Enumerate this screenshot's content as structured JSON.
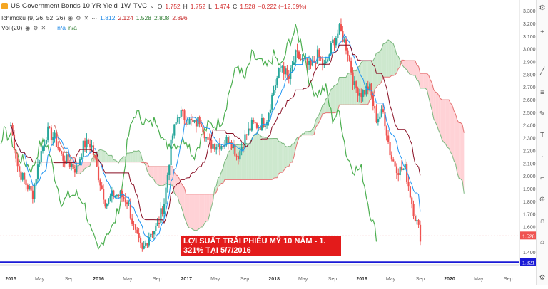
{
  "header": {
    "symbol": "US Government Bonds 10 YR Yield",
    "interval": "1W",
    "source": "TVC",
    "ohlc": {
      "o_label": "O",
      "o": "1.752",
      "h_label": "H",
      "h": "1.752",
      "l_label": "L",
      "l": "1.474",
      "c_label": "C",
      "c": "1.528",
      "change": "−0.222 (−12.69%)"
    },
    "ichimoku_label": "Ichimoku (9, 26, 52, 26)",
    "ichimoku_values": [
      "1.812",
      "2.124",
      "1.528",
      "2.808",
      "2.896"
    ],
    "vol_label": "Vol (20)",
    "vol_values": [
      "n/a",
      "n/a"
    ]
  },
  "annotation": {
    "line1": "LỢI SUẤT TRÁI PHIẾU MỸ 10 NĂM - 1.",
    "line2": "321% TẠI 5/7/2016"
  },
  "colors": {
    "up": "#26a69a",
    "down": "#ef5350",
    "tenkan": "#2196f3",
    "kijun": "#880e23",
    "chikou": "#4caf50",
    "cloud_bull": "#c8e6c9",
    "cloud_bear": "#ffcdd2",
    "hline": "#1a1ad6",
    "annotation_bg": "#e31b1b"
  },
  "chart_data": {
    "type": "candlestick",
    "x_tick_labels": [
      "2015",
      "May",
      "Sep",
      "2016",
      "May",
      "Sep",
      "2017",
      "May",
      "Sep",
      "2018",
      "May",
      "Sep",
      "2019",
      "May",
      "Sep",
      "2020",
      "May",
      "Sep"
    ],
    "y_tick_labels": [
      "3.300",
      "3.200",
      "3.100",
      "3.000",
      "2.900",
      "2.800",
      "2.700",
      "2.600",
      "2.500",
      "2.400",
      "2.300",
      "2.200",
      "2.100",
      "2.000",
      "1.900",
      "1.800",
      "1.700",
      "1.600",
      "1.400"
    ],
    "ylim": [
      1.3,
      3.34
    ],
    "last_price_label": "1.528",
    "hline_label": "1.321",
    "hline_value": 1.321,
    "last_price": 1.528,
    "close_series": [
      {
        "date": "2015-01",
        "close": 2.4
      },
      {
        "date": "2015-02",
        "close": 2.05
      },
      {
        "date": "2015-03",
        "close": 1.95
      },
      {
        "date": "2015-04",
        "close": 1.85
      },
      {
        "date": "2015-05",
        "close": 2.15
      },
      {
        "date": "2015-06",
        "close": 2.35
      },
      {
        "date": "2015-07",
        "close": 2.3
      },
      {
        "date": "2015-08",
        "close": 2.15
      },
      {
        "date": "2015-09",
        "close": 2.1
      },
      {
        "date": "2015-10",
        "close": 2.05
      },
      {
        "date": "2015-11",
        "close": 2.25
      },
      {
        "date": "2015-12",
        "close": 2.25
      },
      {
        "date": "2016-01",
        "close": 2.0
      },
      {
        "date": "2016-02",
        "close": 1.78
      },
      {
        "date": "2016-03",
        "close": 1.85
      },
      {
        "date": "2016-04",
        "close": 1.85
      },
      {
        "date": "2016-05",
        "close": 1.8
      },
      {
        "date": "2016-06",
        "close": 1.55
      },
      {
        "date": "2016-07",
        "close": 1.4
      },
      {
        "date": "2016-08",
        "close": 1.55
      },
      {
        "date": "2016-09",
        "close": 1.6
      },
      {
        "date": "2016-10",
        "close": 1.8
      },
      {
        "date": "2016-11",
        "close": 2.3
      },
      {
        "date": "2016-12",
        "close": 2.5
      },
      {
        "date": "2017-01",
        "close": 2.45
      },
      {
        "date": "2017-02",
        "close": 2.4
      },
      {
        "date": "2017-03",
        "close": 2.45
      },
      {
        "date": "2017-04",
        "close": 2.25
      },
      {
        "date": "2017-05",
        "close": 2.25
      },
      {
        "date": "2017-06",
        "close": 2.25
      },
      {
        "date": "2017-07",
        "close": 2.3
      },
      {
        "date": "2017-08",
        "close": 2.15
      },
      {
        "date": "2017-09",
        "close": 2.3
      },
      {
        "date": "2017-10",
        "close": 2.4
      },
      {
        "date": "2017-11",
        "close": 2.4
      },
      {
        "date": "2017-12",
        "close": 2.45
      },
      {
        "date": "2018-01",
        "close": 2.7
      },
      {
        "date": "2018-02",
        "close": 2.88
      },
      {
        "date": "2018-03",
        "close": 2.75
      },
      {
        "date": "2018-04",
        "close": 2.95
      },
      {
        "date": "2018-05",
        "close": 2.9
      },
      {
        "date": "2018-06",
        "close": 2.85
      },
      {
        "date": "2018-07",
        "close": 2.95
      },
      {
        "date": "2018-08",
        "close": 2.85
      },
      {
        "date": "2018-09",
        "close": 3.05
      },
      {
        "date": "2018-10",
        "close": 3.15
      },
      {
        "date": "2018-11",
        "close": 3.0
      },
      {
        "date": "2018-12",
        "close": 2.7
      },
      {
        "date": "2019-01",
        "close": 2.65
      },
      {
        "date": "2019-02",
        "close": 2.7
      },
      {
        "date": "2019-03",
        "close": 2.45
      },
      {
        "date": "2019-04",
        "close": 2.5
      },
      {
        "date": "2019-05",
        "close": 2.15
      },
      {
        "date": "2019-06",
        "close": 2.05
      },
      {
        "date": "2019-07",
        "close": 2.05
      },
      {
        "date": "2019-08",
        "close": 1.75
      },
      {
        "date": "2019-09",
        "close": 1.53
      }
    ],
    "xlabel": "",
    "ylabel": ""
  }
}
